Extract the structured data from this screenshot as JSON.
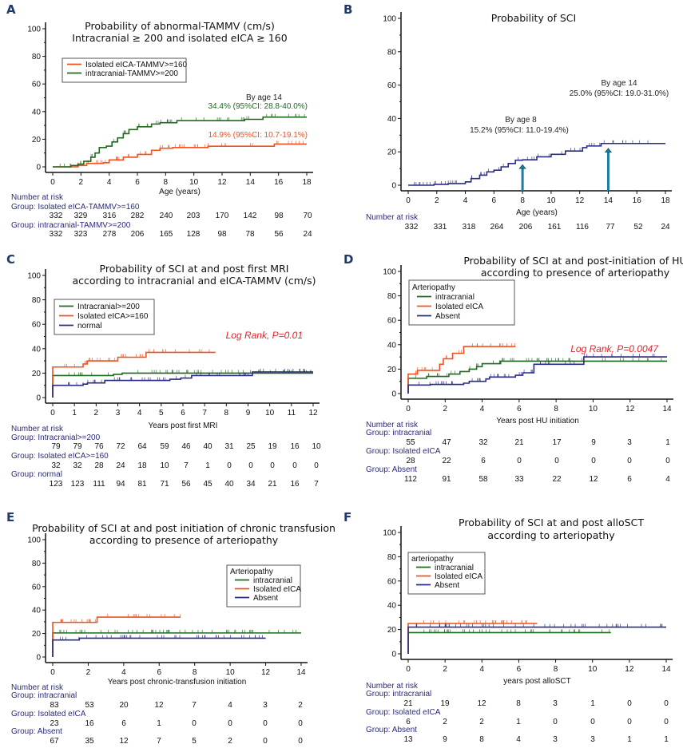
{
  "colors": {
    "green": "#1e6a1e",
    "red": "#f4511e",
    "navy": "#2b2b83",
    "arrow": "#1b7ea0",
    "risk_header": "#2a2a7a",
    "logrank": "#e8222a"
  },
  "chart_data": [
    {
      "id": "A",
      "type": "line",
      "letter": "A",
      "title": [
        "Probability of abnormal-TAMMV (cm/s)",
        "Intracranial ≥ 200 and isolated eICA ≥ 160"
      ],
      "xlabel": "Age (years)",
      "ylabel": "",
      "xlim": [
        0,
        18
      ],
      "ylim": [
        0,
        100
      ],
      "xticks": [
        0,
        2,
        4,
        6,
        8,
        10,
        12,
        14,
        16,
        18
      ],
      "yticks": [
        0,
        20,
        40,
        60,
        80,
        100
      ],
      "legend": {
        "title": "",
        "placement": "top-left"
      },
      "series": [
        {
          "name": "Isolated eICA-TAMMV>=160",
          "color": "red",
          "x": [
            0,
            1.3,
            1.8,
            2.4,
            3.6,
            4.0,
            5.0,
            6.0,
            7.0,
            7.6,
            8.5,
            11.0,
            15.7,
            18
          ],
          "y": [
            0,
            0,
            1,
            2.5,
            3,
            5,
            7,
            9,
            12,
            13.5,
            14,
            14.9,
            16.5,
            16.5
          ]
        },
        {
          "name": "intracranial-TAMMV>=200",
          "color": "green",
          "x": [
            0,
            1.3,
            1.8,
            2.2,
            2.7,
            3.0,
            3.3,
            3.8,
            4.2,
            4.6,
            5.0,
            5.4,
            6.0,
            7.0,
            7.6,
            8.8,
            13.6,
            14.9,
            18
          ],
          "y": [
            0,
            1,
            2,
            4,
            7,
            10,
            14,
            15,
            18,
            21,
            24,
            27,
            29,
            31,
            32,
            33.5,
            34.4,
            36,
            36
          ]
        }
      ],
      "annotations": [
        {
          "text": "By age 14",
          "color": "#222222"
        },
        {
          "text": "34.4% (95%CI: 28.8-40.0%)",
          "color": "green"
        },
        {
          "text": "14.9% (95%CI: 10.7-19.1%)",
          "color": "red"
        }
      ],
      "risk_table": {
        "header": "Number at risk",
        "times": [
          0,
          2,
          4,
          6,
          8,
          10,
          12,
          14,
          16,
          18
        ],
        "groups": [
          {
            "label": "Group: Isolated eICA-TAMMV>=160",
            "values": [
              332,
              329,
              316,
              282,
              240,
              203,
              170,
              142,
              98,
              70
            ]
          },
          {
            "label": "Group: intracranial-TAMMV>=200",
            "values": [
              332,
              323,
              278,
              206,
              165,
              128,
              98,
              78,
              56,
              24
            ]
          }
        ]
      }
    },
    {
      "id": "B",
      "type": "line",
      "letter": "B",
      "title": [
        "Probability of SCI"
      ],
      "xlabel": "Age (years)",
      "ylabel": "",
      "xlim": [
        0,
        18
      ],
      "ylim": [
        0,
        100
      ],
      "xticks": [
        0,
        2,
        4,
        6,
        8,
        10,
        12,
        14,
        16,
        18
      ],
      "yticks": [
        0,
        20,
        40,
        60,
        80,
        100
      ],
      "series": [
        {
          "name": "SCI",
          "color": "navy",
          "x": [
            0,
            1.8,
            2.8,
            4.0,
            4.4,
            5.0,
            5.5,
            6.0,
            6.5,
            7.0,
            7.5,
            8.0,
            9.0,
            10.0,
            11.0,
            12.2,
            12.5,
            13.5,
            18
          ],
          "y": [
            0,
            0.5,
            1,
            2,
            4,
            6,
            8,
            9,
            11,
            13,
            15,
            15.2,
            17,
            18.5,
            20.5,
            22.5,
            23.5,
            25,
            25
          ]
        }
      ],
      "markers": [
        {
          "x": 8,
          "y": 15.2,
          "label": "arrow at age 8"
        },
        {
          "x": 14,
          "y": 25.0,
          "label": "arrow at age 14"
        }
      ],
      "annotations": [
        {
          "text": "By age 14",
          "color": "#222222"
        },
        {
          "text": "25.0% (95%CI: 19.0-31.0%)",
          "color": "#222222"
        },
        {
          "text": "By age 8",
          "color": "#222222"
        },
        {
          "text": "15.2% (95%CI: 11.0-19.4%)",
          "color": "#222222"
        }
      ],
      "risk_table": {
        "header": "Number at risk",
        "times": [
          0,
          2,
          4,
          6,
          8,
          10,
          12,
          14,
          16,
          18
        ],
        "groups": [
          {
            "label": "",
            "values": [
              332,
              331,
              318,
              264,
              206,
              161,
              116,
              77,
              52,
              24
            ]
          }
        ]
      }
    },
    {
      "id": "C",
      "type": "line",
      "letter": "C",
      "title": [
        "Probability of SCI at and post first MRI",
        "according to intracranial and eICA-TAMMV (cm/s)"
      ],
      "xlabel": "Years post first MRI",
      "ylabel": "",
      "xlim": [
        0,
        12
      ],
      "ylim": [
        0,
        100
      ],
      "xticks": [
        0,
        1,
        2,
        3,
        4,
        5,
        6,
        7,
        8,
        9,
        10,
        11,
        12
      ],
      "yticks": [
        0,
        20,
        40,
        60,
        80,
        100
      ],
      "legend": {
        "title": "",
        "placement": "top-left"
      },
      "log_rank": "Log Rank, P=0.01",
      "series": [
        {
          "name": "Intracranial>=200",
          "color": "green",
          "x": [
            0,
            0,
            2.8,
            3.2,
            9.2,
            12
          ],
          "y": [
            0,
            18,
            19,
            20,
            20,
            20
          ]
        },
        {
          "name": "Isolated eICA>=160",
          "color": "red",
          "x": [
            0,
            0,
            1.4,
            1.6,
            3.0,
            4.3,
            7.5
          ],
          "y": [
            0,
            25,
            27.5,
            30,
            33,
            37,
            37
          ]
        },
        {
          "name": "normal",
          "color": "navy",
          "x": [
            0,
            0,
            1.4,
            1.6,
            2.4,
            5.4,
            5.9,
            6.4,
            9.2,
            12
          ],
          "y": [
            0,
            10,
            11,
            12,
            14,
            15,
            16,
            18,
            21,
            21
          ]
        }
      ],
      "risk_table": {
        "header": "Number at risk",
        "times": [
          0,
          1,
          2,
          3,
          4,
          5,
          6,
          7,
          8,
          9,
          10,
          11,
          12
        ],
        "groups": [
          {
            "label": "Group: Intracranial>=200",
            "values": [
              79,
              79,
              76,
              72,
              64,
              59,
              46,
              40,
              31,
              25,
              19,
              16,
              10
            ]
          },
          {
            "label": "Group: Isolated eICA>=160",
            "values": [
              32,
              32,
              28,
              24,
              18,
              10,
              7,
              1,
              0,
              0,
              0,
              0,
              0
            ]
          },
          {
            "label": "Group: normal",
            "values": [
              123,
              123,
              111,
              94,
              81,
              71,
              56,
              45,
              40,
              34,
              21,
              16,
              7
            ]
          }
        ]
      }
    },
    {
      "id": "D",
      "type": "line",
      "letter": "D",
      "title": [
        "Probability of SCI at and post-initiation of HU",
        "according to presence of arteriopathy"
      ],
      "xlabel": "Years post HU initiation",
      "ylabel": "",
      "xlim": [
        0,
        14
      ],
      "ylim": [
        0,
        100
      ],
      "xticks": [
        0,
        2,
        4,
        6,
        8,
        10,
        12,
        14
      ],
      "yticks": [
        0,
        20,
        40,
        60,
        80,
        100
      ],
      "legend": {
        "title": "Arteriopathy",
        "placement": "top-left"
      },
      "log_rank": "Log Rank, P=0.0047",
      "series": [
        {
          "name": "intracranial",
          "color": "green",
          "x": [
            0,
            0,
            1.0,
            2.2,
            2.8,
            3.3,
            3.7,
            4.0,
            5.0,
            14
          ],
          "y": [
            0,
            12.5,
            14,
            16,
            18,
            20,
            22,
            24.5,
            26.5,
            26.5
          ]
        },
        {
          "name": "Isolated eICA",
          "color": "red",
          "x": [
            0,
            0,
            0.5,
            1.7,
            1.9,
            2.4,
            3.0,
            5.8
          ],
          "y": [
            0,
            16,
            19,
            24,
            28.5,
            33,
            38.5,
            38.5
          ]
        },
        {
          "name": "Absent",
          "color": "navy",
          "x": [
            0,
            0,
            1.2,
            3.0,
            3.3,
            4.2,
            4.4,
            5.8,
            6.2,
            6.8,
            9.5,
            14
          ],
          "y": [
            0,
            7,
            7.5,
            8.5,
            10,
            12,
            13.5,
            15,
            17,
            24,
            30,
            30
          ]
        }
      ],
      "risk_table": {
        "header": "Number at risk",
        "times": [
          0,
          2,
          4,
          6,
          8,
          10,
          12,
          14
        ],
        "groups": [
          {
            "label": "Group: intracranial",
            "values": [
              55,
              47,
              32,
              21,
              17,
              9,
              3,
              1
            ]
          },
          {
            "label": "Group: Isolated eICA",
            "values": [
              28,
              22,
              6,
              0,
              0,
              0,
              0,
              0
            ]
          },
          {
            "label": "Group: Absent",
            "values": [
              112,
              91,
              58,
              33,
              22,
              12,
              6,
              4
            ]
          }
        ]
      }
    },
    {
      "id": "E",
      "type": "line",
      "letter": "E",
      "title": [
        "Probability of SCI at and post  initiation of chronic transfusion",
        "according to presence of arteriopathy"
      ],
      "xlabel": "Years post chronic-transfusion initiation",
      "ylabel": "",
      "xlim": [
        0,
        14
      ],
      "ylim": [
        0,
        100
      ],
      "xticks": [
        0,
        2,
        4,
        6,
        8,
        10,
        12,
        14
      ],
      "yticks": [
        0,
        20,
        40,
        60,
        80,
        100
      ],
      "legend": {
        "title": "Arteriopathy",
        "placement": "top-right"
      },
      "series": [
        {
          "name": "intracranial",
          "color": "green",
          "x": [
            0,
            0,
            14
          ],
          "y": [
            0,
            20.5,
            20.5
          ]
        },
        {
          "name": "Isolated eICA",
          "color": "red",
          "x": [
            0,
            0,
            2.5,
            7.2
          ],
          "y": [
            0,
            29.5,
            34,
            34
          ]
        },
        {
          "name": "Absent",
          "color": "navy",
          "x": [
            0,
            0,
            1.5,
            12
          ],
          "y": [
            0,
            14.5,
            16,
            16
          ]
        }
      ],
      "risk_table": {
        "header": "Number at risk",
        "times": [
          0,
          2,
          4,
          6,
          8,
          10,
          12,
          14
        ],
        "groups": [
          {
            "label": "Group: intracranial",
            "values": [
              83,
              53,
              20,
              12,
              7,
              4,
              3,
              2
            ]
          },
          {
            "label": "Group: Isolated eICA",
            "values": [
              23,
              16,
              6,
              1,
              0,
              0,
              0,
              0
            ]
          },
          {
            "label": "Group: Absent",
            "values": [
              67,
              35,
              12,
              7,
              5,
              2,
              0,
              0
            ]
          }
        ]
      }
    },
    {
      "id": "F",
      "type": "line",
      "letter": "F",
      "title": [
        "Probability of SCI at and post  alloSCT",
        "according to arteriopathy"
      ],
      "xlabel": "years post alloSCT",
      "ylabel": "",
      "xlim": [
        0,
        14
      ],
      "ylim": [
        0,
        100
      ],
      "xticks": [
        0,
        2,
        4,
        6,
        8,
        10,
        12,
        14
      ],
      "yticks": [
        0,
        20,
        40,
        60,
        80,
        100
      ],
      "legend": {
        "title": "arteriopathy",
        "placement": "top-left"
      },
      "series": [
        {
          "name": "intracranial",
          "color": "green",
          "x": [
            0,
            0,
            11
          ],
          "y": [
            0,
            17.5,
            17.5
          ]
        },
        {
          "name": "Isolated eICA",
          "color": "red",
          "x": [
            0,
            0,
            7.0
          ],
          "y": [
            0,
            25,
            25
          ]
        },
        {
          "name": "Absent",
          "color": "navy",
          "x": [
            0,
            0,
            14
          ],
          "y": [
            0,
            22,
            22
          ]
        }
      ],
      "risk_table": {
        "header": "Number at risk",
        "times": [
          0,
          2,
          4,
          6,
          8,
          10,
          12,
          14
        ],
        "groups": [
          {
            "label": "Group: intracranial",
            "values": [
              21,
              19,
              12,
              8,
              3,
              1,
              0,
              0
            ]
          },
          {
            "label": "Group: Isolated eICA",
            "values": [
              6,
              2,
              2,
              1,
              0,
              0,
              0,
              0
            ]
          },
          {
            "label": "Group: Absent",
            "values": [
              13,
              9,
              8,
              4,
              3,
              3,
              1,
              1
            ]
          }
        ]
      }
    }
  ]
}
